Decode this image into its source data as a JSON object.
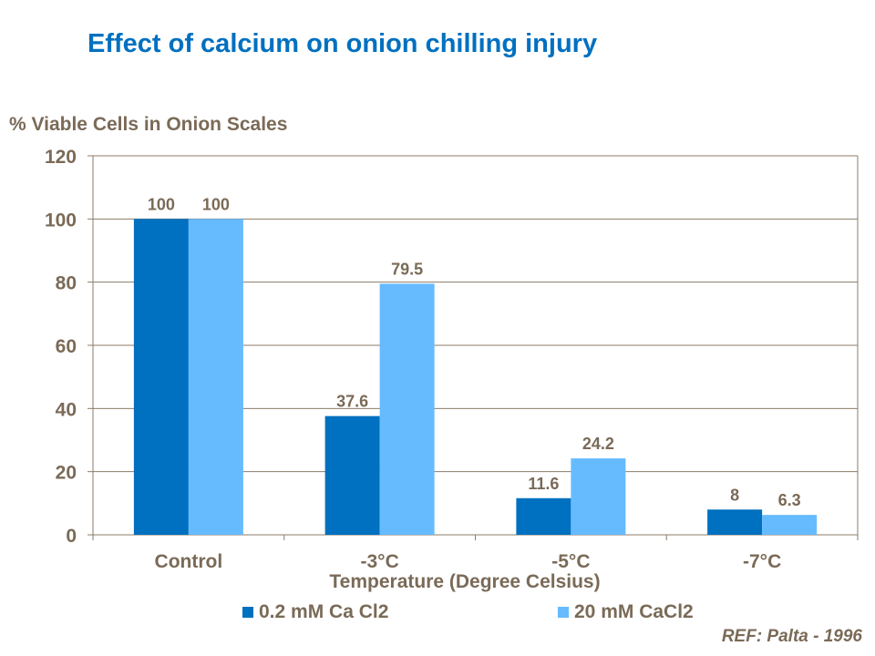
{
  "chart_data": {
    "type": "bar",
    "title": "Effect of calcium on onion chilling injury",
    "ylabel": "% Viable Cells in Onion Scales",
    "xlabel": "Temperature (Degree Celsius)",
    "categories": [
      "Control",
      "-3°C",
      "-5°C",
      "-7°C"
    ],
    "series": [
      {
        "name": "0.2 mM Ca Cl2",
        "values": [
          100,
          37.6,
          11.6,
          8
        ],
        "color": "#0070c0"
      },
      {
        "name": "20 mM CaCl2",
        "values": [
          100,
          79.5,
          24.2,
          6.3
        ],
        "color": "#66bbff"
      }
    ],
    "ylim": [
      0,
      120
    ],
    "yticks": [
      0,
      20,
      40,
      60,
      80,
      100,
      120
    ],
    "grid": true,
    "legend": "bottom",
    "data_labels": true
  },
  "reference": "REF: Palta - 1996"
}
